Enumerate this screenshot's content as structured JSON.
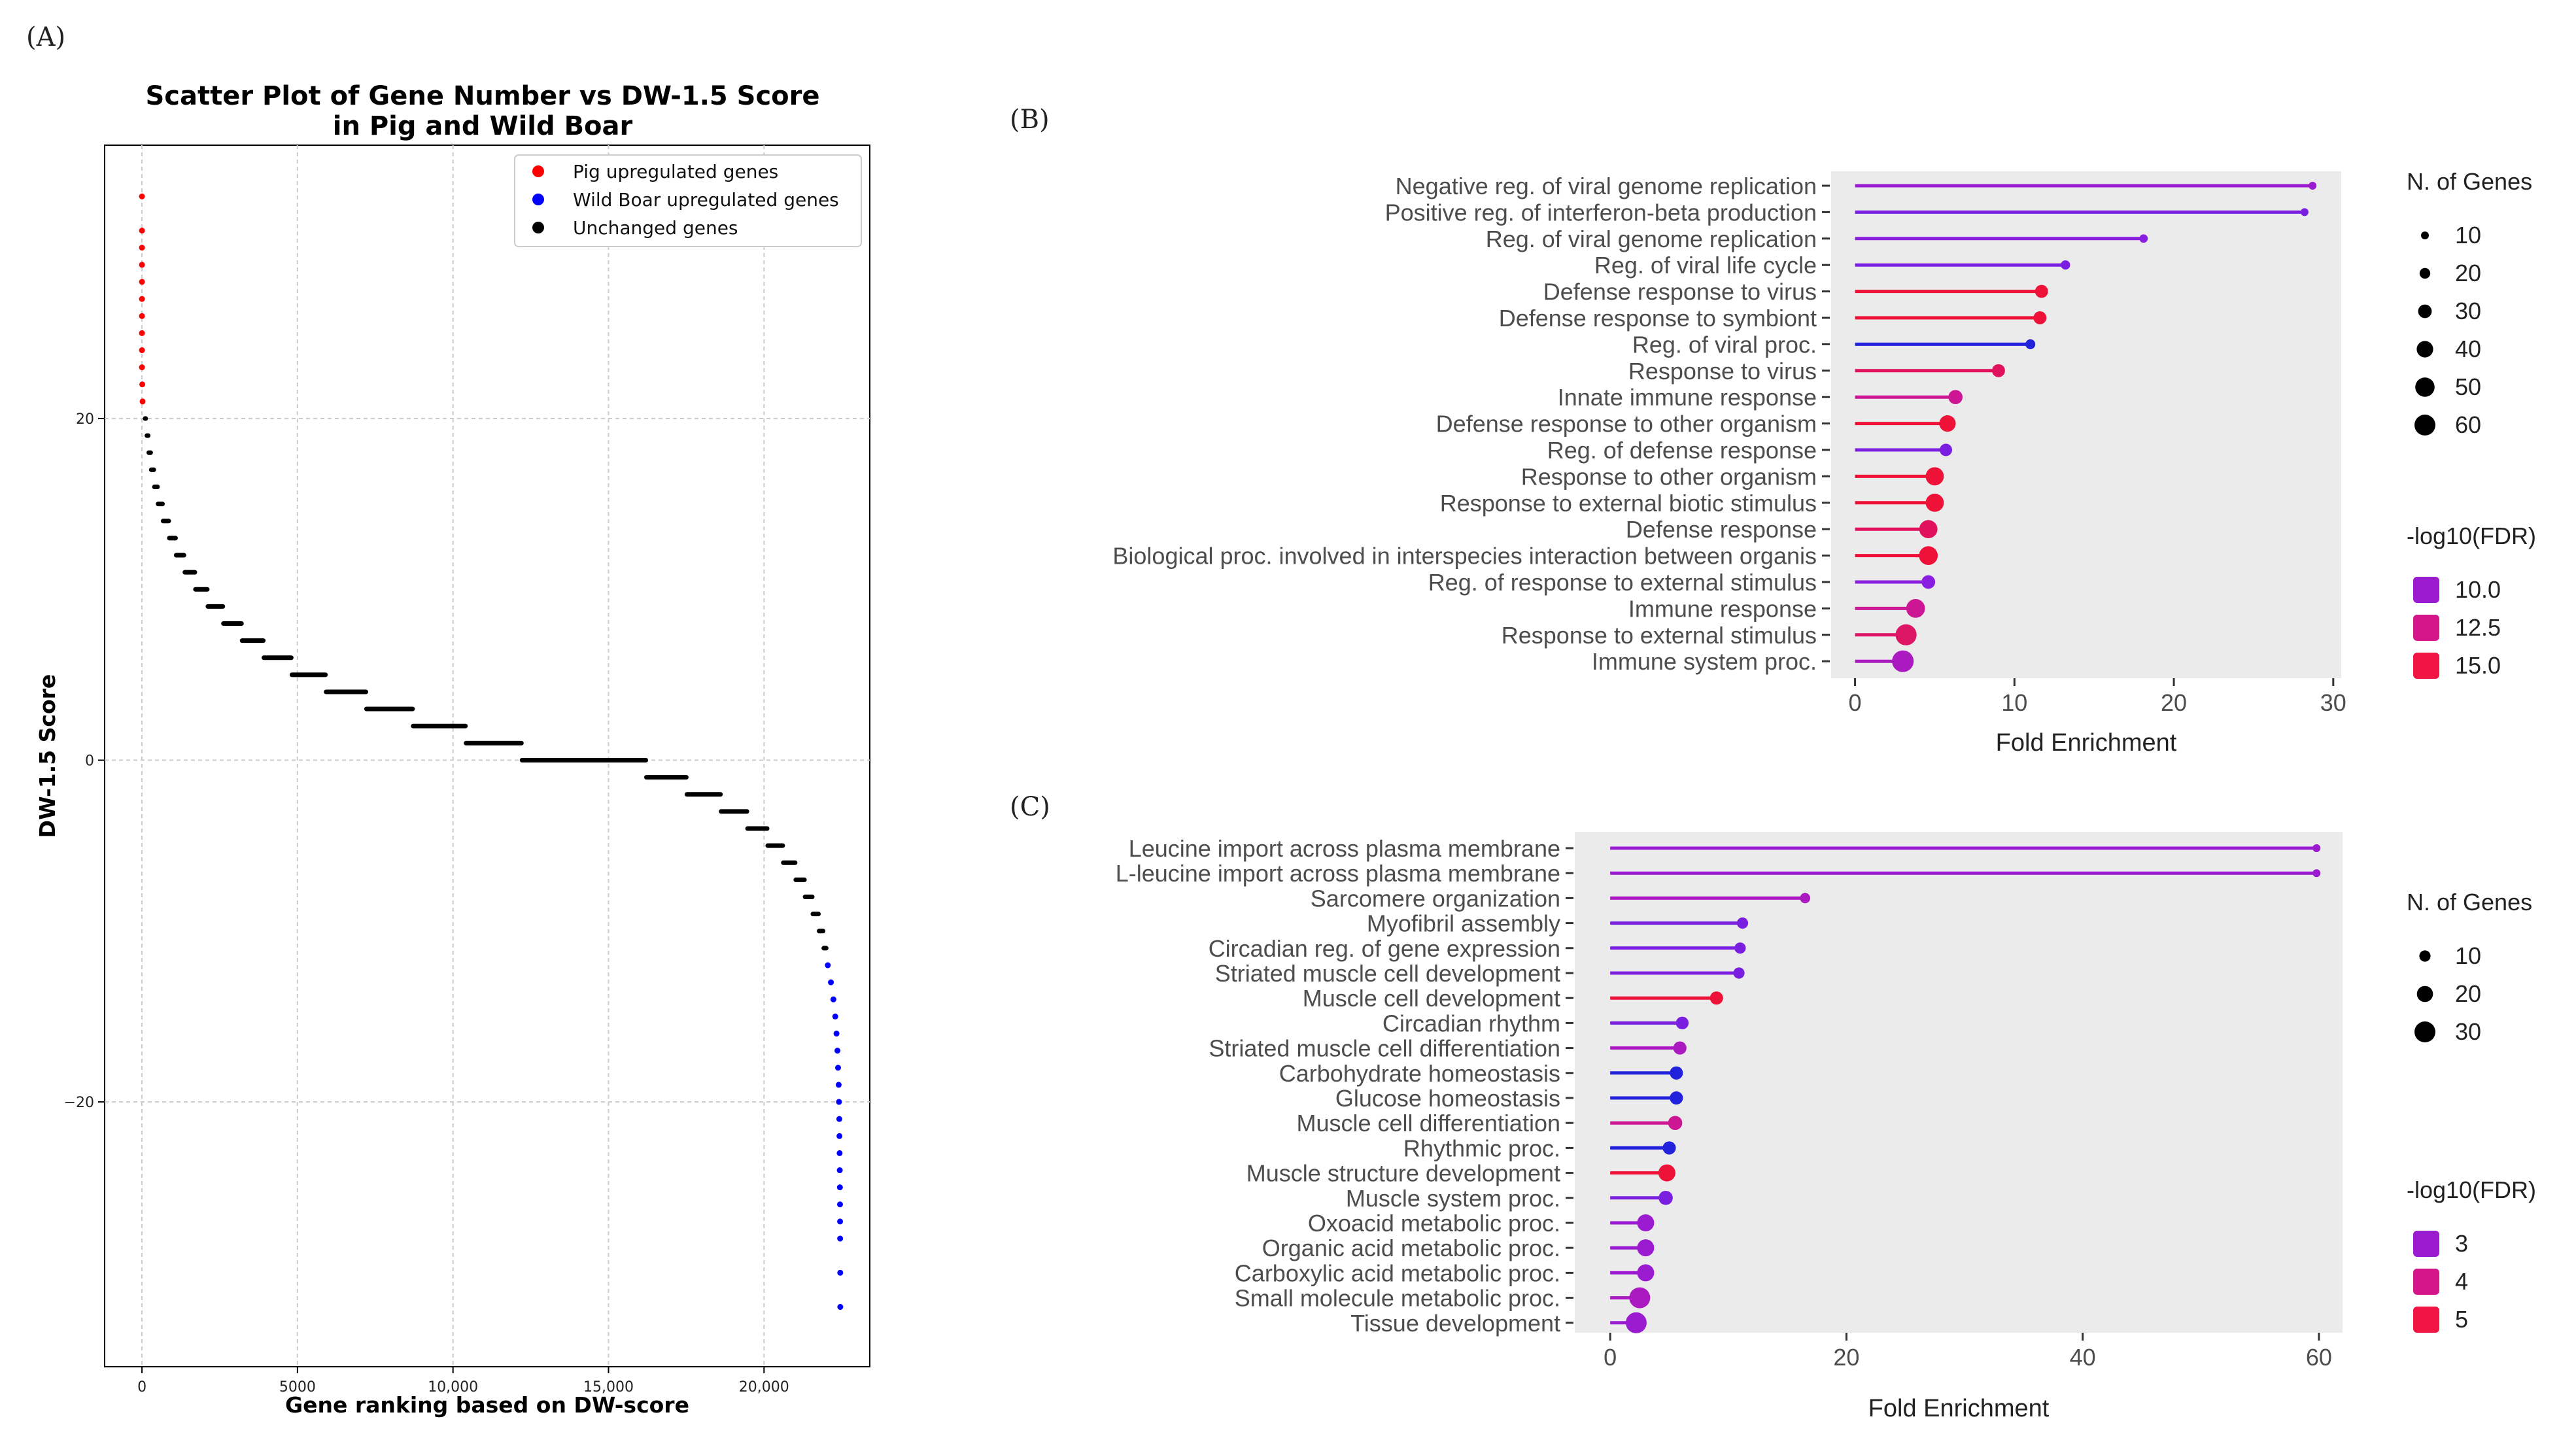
{
  "panel_labels": {
    "a": "(A)",
    "b": "(B)",
    "c": "(C)"
  },
  "chart_data": [
    {
      "type": "scatter",
      "title": "Scatter Plot of Gene Number vs DW-1.5 Score",
      "title_line2": "in Pig and Wild Boar",
      "xlabel": "Gene ranking based on DW-score",
      "ylabel": "DW-1.5 Score",
      "xlim": [
        -1200,
        23400
      ],
      "ylim": [
        -35.5,
        36
      ],
      "xticks": [
        0,
        5000,
        10000,
        15000,
        20000
      ],
      "xtick_labels": [
        "0",
        "5000",
        "10,000",
        "15,000",
        "20,000"
      ],
      "yticks": [
        -20,
        0,
        20
      ],
      "ytick_labels": [
        "−20",
        "0",
        "20"
      ],
      "grid": true,
      "legend_position": "top-right",
      "legend": [
        {
          "label": "Pig upregulated genes",
          "color": "#ff0000"
        },
        {
          "label": "Wild Boar upregulated genes",
          "color": "#0000ff"
        },
        {
          "label": "Unchanged genes",
          "color": "#000000"
        }
      ],
      "segments": [
        {
          "y": 20,
          "x0": 100,
          "x1": 120
        },
        {
          "y": 19,
          "x0": 160,
          "x1": 200
        },
        {
          "y": 18,
          "x0": 220,
          "x1": 280
        },
        {
          "y": 17,
          "x0": 300,
          "x1": 380
        },
        {
          "y": 16,
          "x0": 400,
          "x1": 500
        },
        {
          "y": 15,
          "x0": 520,
          "x1": 660
        },
        {
          "y": 14,
          "x0": 680,
          "x1": 860
        },
        {
          "y": 13,
          "x0": 880,
          "x1": 1080
        },
        {
          "y": 12,
          "x0": 1100,
          "x1": 1350
        },
        {
          "y": 11,
          "x0": 1380,
          "x1": 1700
        },
        {
          "y": 10,
          "x0": 1720,
          "x1": 2100
        },
        {
          "y": 9,
          "x0": 2120,
          "x1": 2600
        },
        {
          "y": 8,
          "x0": 2620,
          "x1": 3200
        },
        {
          "y": 7,
          "x0": 3220,
          "x1": 3900
        },
        {
          "y": 6,
          "x0": 3920,
          "x1": 4800
        },
        {
          "y": 5,
          "x0": 4820,
          "x1": 5900
        },
        {
          "y": 4,
          "x0": 5920,
          "x1": 7200
        },
        {
          "y": 3,
          "x0": 7220,
          "x1": 8700
        },
        {
          "y": 2,
          "x0": 8720,
          "x1": 10400
        },
        {
          "y": 1,
          "x0": 10420,
          "x1": 12200
        },
        {
          "y": 0,
          "x0": 12220,
          "x1": 16200
        },
        {
          "y": -1,
          "x0": 16220,
          "x1": 17500
        },
        {
          "y": -2,
          "x0": 17520,
          "x1": 18600
        },
        {
          "y": -3,
          "x0": 18620,
          "x1": 19450
        },
        {
          "y": -4,
          "x0": 19470,
          "x1": 20100
        },
        {
          "y": -5,
          "x0": 20120,
          "x1": 20600
        },
        {
          "y": -6,
          "x0": 20620,
          "x1": 21000
        },
        {
          "y": -7,
          "x0": 21020,
          "x1": 21300
        },
        {
          "y": -8,
          "x0": 21320,
          "x1": 21550
        },
        {
          "y": -9,
          "x0": 21570,
          "x1": 21750
        },
        {
          "y": -10,
          "x0": 21770,
          "x1": 21900
        },
        {
          "y": -11,
          "x0": 21920,
          "x1": 22000
        }
      ],
      "pig_points": [
        {
          "x": 0,
          "y": 33
        },
        {
          "x": 0,
          "y": 31
        },
        {
          "x": 0,
          "y": 30
        },
        {
          "x": 0,
          "y": 29
        },
        {
          "x": 0,
          "y": 28
        },
        {
          "x": 0,
          "y": 27
        },
        {
          "x": 0,
          "y": 26
        },
        {
          "x": 0,
          "y": 25
        },
        {
          "x": 0,
          "y": 24
        },
        {
          "x": 0,
          "y": 23
        },
        {
          "x": 10,
          "y": 22
        },
        {
          "x": 20,
          "y": 21
        }
      ],
      "wild_boar_points": [
        {
          "x": 22050,
          "y": -12
        },
        {
          "x": 22150,
          "y": -13
        },
        {
          "x": 22230,
          "y": -14
        },
        {
          "x": 22290,
          "y": -15
        },
        {
          "x": 22330,
          "y": -16
        },
        {
          "x": 22360,
          "y": -17
        },
        {
          "x": 22380,
          "y": -18
        },
        {
          "x": 22400,
          "y": -19
        },
        {
          "x": 22410,
          "y": -20
        },
        {
          "x": 22420,
          "y": -21
        },
        {
          "x": 22425,
          "y": -22
        },
        {
          "x": 22430,
          "y": -23
        },
        {
          "x": 22435,
          "y": -24
        },
        {
          "x": 22440,
          "y": -25
        },
        {
          "x": 22443,
          "y": -26
        },
        {
          "x": 22445,
          "y": -27
        },
        {
          "x": 22447,
          "y": -28
        },
        {
          "x": 22450,
          "y": -30
        },
        {
          "x": 22452,
          "y": -32
        }
      ]
    },
    {
      "type": "lollipop",
      "xlabel": "Fold Enrichment",
      "xlim": [
        -1.5,
        30.5
      ],
      "xticks": [
        0,
        10,
        20,
        30
      ],
      "size_legend_title": "N. of Genes",
      "size_legend": [
        10,
        20,
        30,
        40,
        50,
        60
      ],
      "color_legend_title": "-log10(FDR)",
      "color_legend": [
        {
          "label": "10.0",
          "color": "#9a1bd0"
        },
        {
          "label": "12.5",
          "color": "#d4168a"
        },
        {
          "label": "15.0",
          "color": "#f01542"
        }
      ],
      "terms": [
        {
          "label": "Negative reg. of viral genome replication",
          "value": 28.7,
          "genes": 10,
          "color": "#9a1bd0"
        },
        {
          "label": "Positive reg. of interferon-beta production",
          "value": 28.2,
          "genes": 10,
          "color": "#7a1fe0"
        },
        {
          "label": "Reg. of viral genome replication",
          "value": 18.1,
          "genes": 12,
          "color": "#8a1ee0"
        },
        {
          "label": "Reg. of viral life cycle",
          "value": 13.2,
          "genes": 15,
          "color": "#7a1fe0"
        },
        {
          "label": "Defense response to virus",
          "value": 11.7,
          "genes": 28,
          "color": "#ee1238"
        },
        {
          "label": "Defense response to symbiont",
          "value": 11.6,
          "genes": 28,
          "color": "#ee1238"
        },
        {
          "label": "Reg. of viral proc.",
          "value": 11.0,
          "genes": 17,
          "color": "#2222dd"
        },
        {
          "label": "Response to virus",
          "value": 9.0,
          "genes": 28,
          "color": "#e0125e"
        },
        {
          "label": "Innate immune response",
          "value": 6.3,
          "genes": 32,
          "color": "#cc1694"
        },
        {
          "label": "Defense response to other organism",
          "value": 5.8,
          "genes": 40,
          "color": "#ee1238"
        },
        {
          "label": "Reg. of defense response",
          "value": 5.7,
          "genes": 26,
          "color": "#7a1fe0"
        },
        {
          "label": "Response to other organism",
          "value": 5.0,
          "genes": 46,
          "color": "#ee1238"
        },
        {
          "label": "Response to external biotic stimulus",
          "value": 5.0,
          "genes": 46,
          "color": "#ee1238"
        },
        {
          "label": "Defense response",
          "value": 4.6,
          "genes": 46,
          "color": "#e0125e"
        },
        {
          "label": "Biological proc. involved in interspecies interaction between organis",
          "value": 4.6,
          "genes": 48,
          "color": "#ee1238"
        },
        {
          "label": "Reg. of response to external stimulus",
          "value": 4.6,
          "genes": 30,
          "color": "#8a1ee0"
        },
        {
          "label": "Immune response",
          "value": 3.8,
          "genes": 48,
          "color": "#cc1694"
        },
        {
          "label": "Response to external stimulus",
          "value": 3.2,
          "genes": 56,
          "color": "#dd1666"
        },
        {
          "label": "Immune system proc.",
          "value": 3.0,
          "genes": 58,
          "color": "#aa1ac0"
        }
      ]
    },
    {
      "type": "lollipop",
      "xlabel": "Fold Enrichment",
      "xlim": [
        -3,
        62
      ],
      "xticks": [
        0,
        20,
        40,
        60
      ],
      "size_legend_title": "N. of Genes",
      "size_legend": [
        10,
        20,
        30
      ],
      "color_legend_title": "-log10(FDR)",
      "color_legend": [
        {
          "label": "3",
          "color": "#9a1bd0"
        },
        {
          "label": "4",
          "color": "#d4168a"
        },
        {
          "label": "5",
          "color": "#f01542"
        }
      ],
      "terms": [
        {
          "label": "Leucine import across plasma membrane",
          "value": 59.8,
          "genes": 3,
          "color": "#9a1bd0"
        },
        {
          "label": "L-leucine import across plasma membrane",
          "value": 59.8,
          "genes": 3,
          "color": "#9a1bd0"
        },
        {
          "label": "Sarcomere organization",
          "value": 16.5,
          "genes": 8,
          "color": "#aa1ac0"
        },
        {
          "label": "Myofibril assembly",
          "value": 11.2,
          "genes": 10,
          "color": "#7a1fe0"
        },
        {
          "label": "Circadian reg. of gene expression",
          "value": 11.0,
          "genes": 10,
          "color": "#7a1fe0"
        },
        {
          "label": "Striated muscle cell development",
          "value": 10.9,
          "genes": 10,
          "color": "#7a1fe0"
        },
        {
          "label": "Muscle cell development",
          "value": 9.0,
          "genes": 14,
          "color": "#ee1238"
        },
        {
          "label": "Circadian rhythm",
          "value": 6.1,
          "genes": 13,
          "color": "#7a1fe0"
        },
        {
          "label": "Striated muscle cell differentiation",
          "value": 5.9,
          "genes": 14,
          "color": "#aa1ac0"
        },
        {
          "label": "Carbohydrate homeostasis",
          "value": 5.6,
          "genes": 14,
          "color": "#2222dd"
        },
        {
          "label": "Glucose homeostasis",
          "value": 5.6,
          "genes": 14,
          "color": "#2222dd"
        },
        {
          "label": "Muscle cell differentiation",
          "value": 5.5,
          "genes": 16,
          "color": "#cc1694"
        },
        {
          "label": "Rhythmic proc.",
          "value": 5.0,
          "genes": 14,
          "color": "#2222dd"
        },
        {
          "label": "Muscle structure development",
          "value": 4.8,
          "genes": 22,
          "color": "#ee1238"
        },
        {
          "label": "Muscle system proc.",
          "value": 4.7,
          "genes": 16,
          "color": "#7a1fe0"
        },
        {
          "label": "Oxoacid metabolic proc.",
          "value": 3.0,
          "genes": 22,
          "color": "#9a1bd0"
        },
        {
          "label": "Organic acid metabolic proc.",
          "value": 3.0,
          "genes": 22,
          "color": "#9a1bd0"
        },
        {
          "label": "Carboxylic acid metabolic proc.",
          "value": 3.0,
          "genes": 22,
          "color": "#9a1bd0"
        },
        {
          "label": "Small molecule metabolic proc.",
          "value": 2.5,
          "genes": 30,
          "color": "#aa1ac0"
        },
        {
          "label": "Tissue development",
          "value": 2.2,
          "genes": 30,
          "color": "#9a1bd0"
        }
      ]
    }
  ]
}
